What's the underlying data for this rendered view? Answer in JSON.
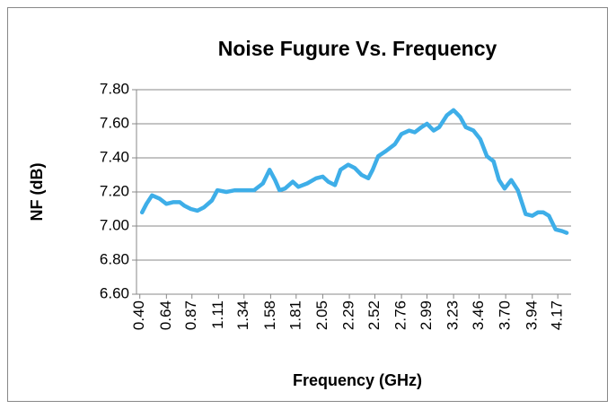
{
  "chart_data": {
    "type": "line",
    "title": "Noise Fugure Vs. Frequency",
    "xlabel": "Frequency (GHz)",
    "ylabel": "NF (dB)",
    "color": "#3eaee8",
    "grid": true,
    "x": [
      0.42,
      0.46,
      0.51,
      0.58,
      0.64,
      0.7,
      0.76,
      0.8,
      0.86,
      0.92,
      0.98,
      1.05,
      1.1,
      1.18,
      1.26,
      1.35,
      1.43,
      1.51,
      1.57,
      1.62,
      1.66,
      1.71,
      1.78,
      1.83,
      1.91,
      1.99,
      2.05,
      2.1,
      2.16,
      2.21,
      2.28,
      2.34,
      2.4,
      2.46,
      2.5,
      2.55,
      2.62,
      2.7,
      2.76,
      2.83,
      2.88,
      2.94,
      2.99,
      3.05,
      3.1,
      3.17,
      3.23,
      3.29,
      3.34,
      3.41,
      3.47,
      3.53,
      3.59,
      3.64,
      3.69,
      3.75,
      3.81,
      3.88,
      3.94,
      3.99,
      4.04,
      4.09,
      4.15,
      4.21,
      4.25
    ],
    "values": [
      7.08,
      7.13,
      7.18,
      7.16,
      7.13,
      7.14,
      7.14,
      7.12,
      7.1,
      7.09,
      7.11,
      7.15,
      7.21,
      7.2,
      7.21,
      7.21,
      7.21,
      7.25,
      7.33,
      7.27,
      7.21,
      7.22,
      7.26,
      7.23,
      7.25,
      7.28,
      7.29,
      7.26,
      7.24,
      7.33,
      7.36,
      7.34,
      7.3,
      7.28,
      7.33,
      7.41,
      7.44,
      7.48,
      7.54,
      7.56,
      7.55,
      7.58,
      7.6,
      7.56,
      7.58,
      7.65,
      7.68,
      7.64,
      7.58,
      7.56,
      7.51,
      7.41,
      7.38,
      7.27,
      7.22,
      7.27,
      7.21,
      7.07,
      7.06,
      7.08,
      7.08,
      7.06,
      6.98,
      6.97,
      6.96
    ],
    "xlim": [
      0.37,
      4.29
    ],
    "xticks": [
      {
        "value": 0.4,
        "label": "0.40"
      },
      {
        "value": 0.64,
        "label": "0.64"
      },
      {
        "value": 0.87,
        "label": "0.87"
      },
      {
        "value": 1.11,
        "label": "1.11"
      },
      {
        "value": 1.34,
        "label": "1.34"
      },
      {
        "value": 1.58,
        "label": "1.58"
      },
      {
        "value": 1.81,
        "label": "1.81"
      },
      {
        "value": 2.05,
        "label": "2.05"
      },
      {
        "value": 2.29,
        "label": "2.29"
      },
      {
        "value": 2.52,
        "label": "2.52"
      },
      {
        "value": 2.76,
        "label": "2.76"
      },
      {
        "value": 2.99,
        "label": "2.99"
      },
      {
        "value": 3.23,
        "label": "3.23"
      },
      {
        "value": 3.46,
        "label": "3.46"
      },
      {
        "value": 3.7,
        "label": "3.70"
      },
      {
        "value": 3.94,
        "label": "3.94"
      },
      {
        "value": 4.17,
        "label": "4.17"
      }
    ],
    "ylim": [
      6.6,
      7.8
    ],
    "yticks": [
      {
        "value": 6.6,
        "label": "6.60"
      },
      {
        "value": 6.8,
        "label": "6.80"
      },
      {
        "value": 7.0,
        "label": "7.00"
      },
      {
        "value": 7.2,
        "label": "7.20"
      },
      {
        "value": 7.4,
        "label": "7.40"
      },
      {
        "value": 7.6,
        "label": "7.60"
      },
      {
        "value": 7.8,
        "label": "7.80"
      }
    ]
  }
}
